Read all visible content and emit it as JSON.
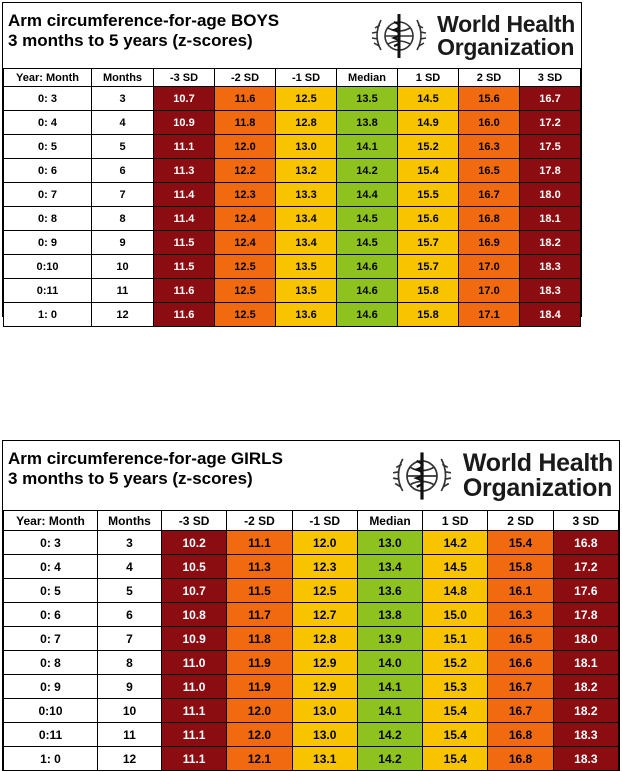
{
  "colors": {
    "sd3": "#8b0d12",
    "sd2": "#f26a10",
    "sd1": "#f8c400",
    "median": "#8ec31f"
  },
  "logo": {
    "icon": "who-emblem-icon",
    "line1": "World Health",
    "line2": "Organization"
  },
  "columns": [
    "Year: Month",
    "Months",
    "-3 SD",
    "-2 SD",
    "-1 SD",
    "Median",
    "1 SD",
    "2 SD",
    "3 SD"
  ],
  "boys": {
    "title_line1": "Arm circumference-for-age BOYS",
    "title_line2": "3 months to 5 years (z-scores)",
    "rows": [
      [
        "0: 3",
        "3",
        "10.7",
        "11.6",
        "12.5",
        "13.5",
        "14.5",
        "15.6",
        "16.7"
      ],
      [
        "0: 4",
        "4",
        "10.9",
        "11.8",
        "12.8",
        "13.8",
        "14.9",
        "16.0",
        "17.2"
      ],
      [
        "0: 5",
        "5",
        "11.1",
        "12.0",
        "13.0",
        "14.1",
        "15.2",
        "16.3",
        "17.5"
      ],
      [
        "0: 6",
        "6",
        "11.3",
        "12.2",
        "13.2",
        "14.2",
        "15.4",
        "16.5",
        "17.8"
      ],
      [
        "0: 7",
        "7",
        "11.4",
        "12.3",
        "13.3",
        "14.4",
        "15.5",
        "16.7",
        "18.0"
      ],
      [
        "0: 8",
        "8",
        "11.4",
        "12.4",
        "13.4",
        "14.5",
        "15.6",
        "16.8",
        "18.1"
      ],
      [
        "0: 9",
        "9",
        "11.5",
        "12.4",
        "13.4",
        "14.5",
        "15.7",
        "16.9",
        "18.2"
      ],
      [
        "0:10",
        "10",
        "11.5",
        "12.5",
        "13.5",
        "14.6",
        "15.7",
        "17.0",
        "18.3"
      ],
      [
        "0:11",
        "11",
        "11.6",
        "12.5",
        "13.5",
        "14.6",
        "15.8",
        "17.0",
        "18.3"
      ],
      [
        "1: 0",
        "12",
        "11.6",
        "12.5",
        "13.6",
        "14.6",
        "15.8",
        "17.1",
        "18.4"
      ]
    ]
  },
  "girls": {
    "title_line1": "Arm circumference-for-age GIRLS",
    "title_line2": "3 months to 5 years (z-scores)",
    "rows": [
      [
        "0: 3",
        "3",
        "10.2",
        "11.1",
        "12.0",
        "13.0",
        "14.2",
        "15.4",
        "16.8"
      ],
      [
        "0: 4",
        "4",
        "10.5",
        "11.3",
        "12.3",
        "13.4",
        "14.5",
        "15.8",
        "17.2"
      ],
      [
        "0: 5",
        "5",
        "10.7",
        "11.5",
        "12.5",
        "13.6",
        "14.8",
        "16.1",
        "17.6"
      ],
      [
        "0: 6",
        "6",
        "10.8",
        "11.7",
        "12.7",
        "13.8",
        "15.0",
        "16.3",
        "17.8"
      ],
      [
        "0: 7",
        "7",
        "10.9",
        "11.8",
        "12.8",
        "13.9",
        "15.1",
        "16.5",
        "18.0"
      ],
      [
        "0: 8",
        "8",
        "11.0",
        "11.9",
        "12.9",
        "14.0",
        "15.2",
        "16.6",
        "18.1"
      ],
      [
        "0: 9",
        "9",
        "11.0",
        "11.9",
        "12.9",
        "14.1",
        "15.3",
        "16.7",
        "18.2"
      ],
      [
        "0:10",
        "10",
        "11.1",
        "12.0",
        "13.0",
        "14.1",
        "15.4",
        "16.7",
        "18.2"
      ],
      [
        "0:11",
        "11",
        "11.1",
        "12.0",
        "13.0",
        "14.2",
        "15.4",
        "16.8",
        "18.3"
      ],
      [
        "1: 0",
        "12",
        "11.1",
        "12.1",
        "13.1",
        "14.2",
        "15.4",
        "16.8",
        "18.3"
      ]
    ]
  }
}
